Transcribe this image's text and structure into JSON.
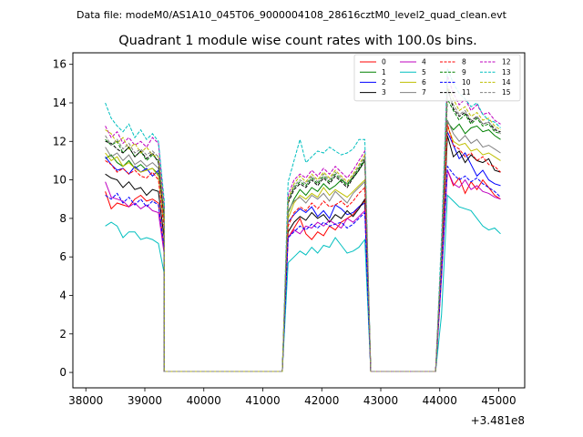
{
  "chart_data": {
    "type": "line",
    "suptitle": "Data file: modeM0/AS1A10_045T06_9000004108_28616cztM0_level2_quad_clean.evt",
    "title": "Quadrant 1 module wise count rates with 100.0s bins.",
    "xlabel": "",
    "ylabel": "",
    "x_offset_label": "+3.481e8",
    "xlim": [
      37780,
      45440
    ],
    "ylim": [
      -0.8,
      16.6
    ],
    "xticks": [
      38000,
      39000,
      40000,
      41000,
      42000,
      43000,
      44000,
      45000
    ],
    "xtick_labels": [
      "38000",
      "39000",
      "40000",
      "41000",
      "42000",
      "43000",
      "44000",
      "45000"
    ],
    "yticks": [
      0,
      2,
      4,
      6,
      8,
      10,
      12,
      14,
      16
    ],
    "ytick_labels": [
      "0",
      "2",
      "4",
      "6",
      "8",
      "10",
      "12",
      "14",
      "16"
    ],
    "grid": false,
    "legend": {
      "placement": "top-right",
      "columns": 4
    },
    "segments": [
      {
        "start": 38330,
        "step": 100,
        "count": 11
      },
      {
        "start": 39330,
        "step": 100,
        "count": 2,
        "const": 0.05
      },
      {
        "start": 41330,
        "step": 100,
        "count": 1,
        "const": 0.05
      },
      {
        "start": 41430,
        "step": 100,
        "count": 14
      },
      {
        "start": 42830,
        "step": 100,
        "count": 1,
        "const": 0.05
      },
      {
        "start": 43930,
        "step": 100,
        "count": 1,
        "const": 0.05
      },
      {
        "start": 44030,
        "step": 100,
        "count": 11
      }
    ],
    "series": [
      {
        "name": "0",
        "color": "#ff0000",
        "dash": "solid",
        "seg1": [
          9.4,
          8.5,
          8.8,
          8.7,
          8.6,
          9.0,
          9.2,
          8.9,
          9.0,
          8.8,
          6.4
        ],
        "seg2": [
          7.0,
          7.5,
          8.0,
          7.2,
          6.9,
          7.3,
          7.1,
          7.6,
          7.4,
          7.8,
          8.0,
          8.2,
          8.6,
          8.9
        ],
        "seg3": [
          5.0,
          10.5,
          9.7,
          10.1,
          9.3,
          9.9,
          9.5,
          10.0,
          9.6,
          9.2,
          9.0
        ]
      },
      {
        "name": "1",
        "color": "#008000",
        "dash": "solid",
        "seg1": [
          11.1,
          11.3,
          10.9,
          10.7,
          11.0,
          10.6,
          10.8,
          10.5,
          10.6,
          10.3,
          7.6
        ],
        "seg2": [
          8.3,
          9.0,
          9.5,
          9.2,
          9.6,
          9.4,
          9.8,
          9.5,
          9.7,
          10.0,
          9.8,
          10.1,
          10.5,
          11.0
        ],
        "seg3": [
          6.0,
          13.0,
          12.6,
          12.9,
          12.4,
          12.7,
          12.8,
          12.5,
          12.6,
          12.3,
          12.1
        ]
      },
      {
        "name": "2",
        "color": "#0000ff",
        "dash": "solid",
        "seg1": [
          11.2,
          10.8,
          10.5,
          10.6,
          10.3,
          10.7,
          10.4,
          10.6,
          10.2,
          10.5,
          7.6
        ],
        "seg2": [
          7.8,
          8.2,
          8.5,
          8.3,
          8.6,
          8.1,
          8.4,
          8.0,
          8.7,
          8.5,
          8.2,
          8.3,
          8.6,
          8.8
        ],
        "seg3": [
          6.0,
          12.5,
          11.8,
          11.1,
          11.4,
          10.8,
          10.2,
          10.5,
          10.0,
          9.8,
          9.7
        ]
      },
      {
        "name": "3",
        "color": "#000000",
        "dash": "solid",
        "seg1": [
          10.3,
          10.1,
          10.0,
          9.6,
          9.9,
          9.5,
          9.6,
          9.2,
          9.5,
          9.4,
          6.9
        ],
        "seg2": [
          7.3,
          7.8,
          8.1,
          7.9,
          8.3,
          8.0,
          8.2,
          7.8,
          8.2,
          8.0,
          8.4,
          8.1,
          8.5,
          9.0
        ],
        "seg3": [
          5.5,
          12.3,
          11.2,
          11.5,
          10.9,
          11.3,
          11.0,
          10.9,
          11.1,
          10.5,
          10.4
        ]
      },
      {
        "name": "4",
        "color": "#bf00bf",
        "dash": "solid",
        "seg1": [
          9.9,
          9.1,
          9.0,
          8.9,
          8.6,
          8.8,
          8.5,
          8.7,
          8.4,
          8.3,
          6.1
        ],
        "seg2": [
          7.0,
          7.4,
          7.2,
          7.6,
          7.5,
          7.8,
          7.6,
          7.9,
          7.7,
          7.5,
          8.0,
          7.8,
          8.1,
          8.4
        ],
        "seg3": [
          5.0,
          10.5,
          9.8,
          9.6,
          10.0,
          9.5,
          9.7,
          9.4,
          9.3,
          9.1,
          9.0
        ]
      },
      {
        "name": "5",
        "color": "#00bfbf",
        "dash": "solid",
        "seg1": [
          7.6,
          7.8,
          7.6,
          7.0,
          7.3,
          7.3,
          6.9,
          7.0,
          6.9,
          6.7,
          5.1
        ],
        "seg2": [
          5.7,
          6.0,
          6.3,
          6.1,
          6.5,
          6.2,
          6.6,
          6.5,
          7.0,
          6.6,
          6.2,
          6.3,
          6.5,
          6.9
        ],
        "seg3": [
          3.0,
          9.2,
          8.9,
          8.6,
          8.5,
          8.4,
          8.0,
          7.6,
          7.4,
          7.5,
          7.2
        ]
      },
      {
        "name": "6",
        "color": "#bfbf00",
        "dash": "solid",
        "seg1": [
          11.4,
          11.0,
          11.2,
          10.7,
          10.9,
          10.6,
          10.4,
          10.5,
          10.6,
          10.2,
          7.6
        ],
        "seg2": [
          8.0,
          8.8,
          9.2,
          9.0,
          9.3,
          9.1,
          9.6,
          9.2,
          9.5,
          9.3,
          9.1,
          9.4,
          9.7,
          10.0
        ],
        "seg3": [
          5.8,
          12.8,
          12.0,
          11.8,
          11.9,
          11.5,
          11.6,
          11.3,
          11.4,
          11.2,
          11.0
        ]
      },
      {
        "name": "7",
        "color": "#808080",
        "dash": "solid",
        "seg1": [
          11.7,
          11.2,
          11.4,
          11.0,
          11.3,
          10.8,
          11.0,
          10.7,
          10.9,
          10.6,
          7.9
        ],
        "seg2": [
          8.4,
          8.9,
          9.1,
          8.8,
          9.2,
          9.0,
          9.3,
          8.9,
          9.4,
          9.1,
          8.8,
          9.3,
          9.6,
          9.9
        ],
        "seg3": [
          5.7,
          13.1,
          12.4,
          12.0,
          12.3,
          11.9,
          12.1,
          11.7,
          11.8,
          11.6,
          11.4
        ]
      },
      {
        "name": "8",
        "color": "#ff0000",
        "dash": "dashed",
        "seg1": [
          11.0,
          10.8,
          10.4,
          10.6,
          10.3,
          10.5,
          10.2,
          10.1,
          10.4,
          10.0,
          7.4
        ],
        "seg2": [
          7.6,
          8.3,
          8.6,
          8.4,
          8.8,
          8.5,
          8.9,
          8.6,
          8.7,
          8.9,
          8.6,
          8.9,
          9.3,
          9.6
        ],
        "seg3": [
          5.6,
          12.9,
          11.8,
          11.6,
          11.2,
          11.4,
          11.0,
          11.2,
          10.8,
          10.7,
          10.4
        ]
      },
      {
        "name": "9",
        "color": "#008000",
        "dash": "dashed",
        "seg1": [
          12.1,
          11.8,
          12.0,
          11.4,
          11.7,
          11.2,
          11.5,
          11.0,
          11.3,
          11.0,
          8.1
        ],
        "seg2": [
          8.9,
          9.6,
          9.9,
          9.7,
          10.1,
          9.8,
          10.2,
          9.9,
          10.3,
          10.0,
          9.7,
          10.2,
          10.6,
          11.1
        ],
        "seg3": [
          6.2,
          14.2,
          13.6,
          13.1,
          13.4,
          12.9,
          13.2,
          12.8,
          12.9,
          12.5,
          12.4
        ]
      },
      {
        "name": "10",
        "color": "#0000ff",
        "dash": "dashed",
        "seg1": [
          9.2,
          9.0,
          9.3,
          8.8,
          9.1,
          8.7,
          9.0,
          8.6,
          8.9,
          8.7,
          6.4
        ],
        "seg2": [
          7.0,
          7.3,
          7.6,
          7.4,
          7.7,
          7.5,
          7.8,
          7.6,
          7.7,
          7.8,
          7.5,
          7.7,
          8.0,
          8.3
        ],
        "seg3": [
          5.2,
          10.7,
          10.3,
          10.0,
          10.2,
          9.9,
          10.1,
          9.8,
          9.6,
          9.4,
          9.1
        ]
      },
      {
        "name": "11",
        "color": "#000000",
        "dash": "dashed",
        "seg1": [
          12.0,
          11.9,
          11.6,
          11.4,
          11.7,
          11.2,
          11.5,
          11.1,
          11.4,
          10.9,
          8.0
        ],
        "seg2": [
          8.8,
          9.5,
          9.8,
          9.6,
          10.0,
          9.7,
          10.1,
          9.8,
          10.2,
          9.9,
          9.6,
          10.1,
          10.5,
          11.0
        ],
        "seg3": [
          6.1,
          14.8,
          13.7,
          13.3,
          13.5,
          13.0,
          13.3,
          12.9,
          13.0,
          12.6,
          12.5
        ]
      },
      {
        "name": "12",
        "color": "#bf00bf",
        "dash": "dashed",
        "seg1": [
          12.8,
          12.2,
          12.5,
          11.9,
          12.2,
          11.8,
          12.0,
          11.7,
          12.2,
          11.9,
          8.6
        ],
        "seg2": [
          9.2,
          10.0,
          10.3,
          10.1,
          10.5,
          10.2,
          10.6,
          10.3,
          10.7,
          10.4,
          10.1,
          10.5,
          11.0,
          11.5
        ],
        "seg3": [
          6.5,
          15.4,
          14.5,
          13.9,
          14.2,
          13.6,
          13.9,
          13.4,
          13.5,
          13.1,
          12.9
        ]
      },
      {
        "name": "13",
        "color": "#00bfbf",
        "dash": "dashed",
        "seg1": [
          14.0,
          13.2,
          12.8,
          12.5,
          12.9,
          12.2,
          12.6,
          12.1,
          12.4,
          12.0,
          8.9
        ],
        "seg2": [
          9.9,
          11.0,
          12.1,
          10.9,
          11.2,
          11.5,
          11.4,
          11.7,
          11.5,
          11.3,
          11.4,
          11.6,
          12.1,
          12.1
        ],
        "seg3": [
          7.1,
          15.8,
          15.0,
          14.5,
          14.2,
          13.8,
          14.0,
          13.4,
          13.1,
          13.0,
          12.7
        ]
      },
      {
        "name": "14",
        "color": "#bfbf00",
        "dash": "dashed",
        "seg1": [
          12.6,
          12.4,
          11.9,
          12.2,
          11.6,
          11.9,
          11.4,
          11.7,
          11.3,
          11.2,
          8.3
        ],
        "seg2": [
          9.0,
          9.8,
          10.2,
          9.9,
          10.3,
          10.0,
          10.4,
          10.1,
          10.5,
          10.2,
          9.9,
          10.3,
          10.8,
          11.3
        ],
        "seg3": [
          6.3,
          14.9,
          14.2,
          13.6,
          13.8,
          13.3,
          13.5,
          13.1,
          13.2,
          12.8,
          12.6
        ]
      },
      {
        "name": "15",
        "color": "#808080",
        "dash": "dashed",
        "seg1": [
          12.3,
          11.8,
          12.1,
          11.6,
          11.9,
          11.4,
          11.6,
          11.3,
          11.5,
          11.2,
          8.2
        ],
        "seg2": [
          8.9,
          9.7,
          10.0,
          9.8,
          10.2,
          9.9,
          10.3,
          10.0,
          10.4,
          10.1,
          9.8,
          10.2,
          10.7,
          11.2
        ],
        "seg3": [
          6.2,
          14.6,
          13.9,
          13.4,
          13.6,
          13.1,
          13.3,
          12.9,
          13.0,
          12.7,
          12.4
        ]
      }
    ]
  }
}
